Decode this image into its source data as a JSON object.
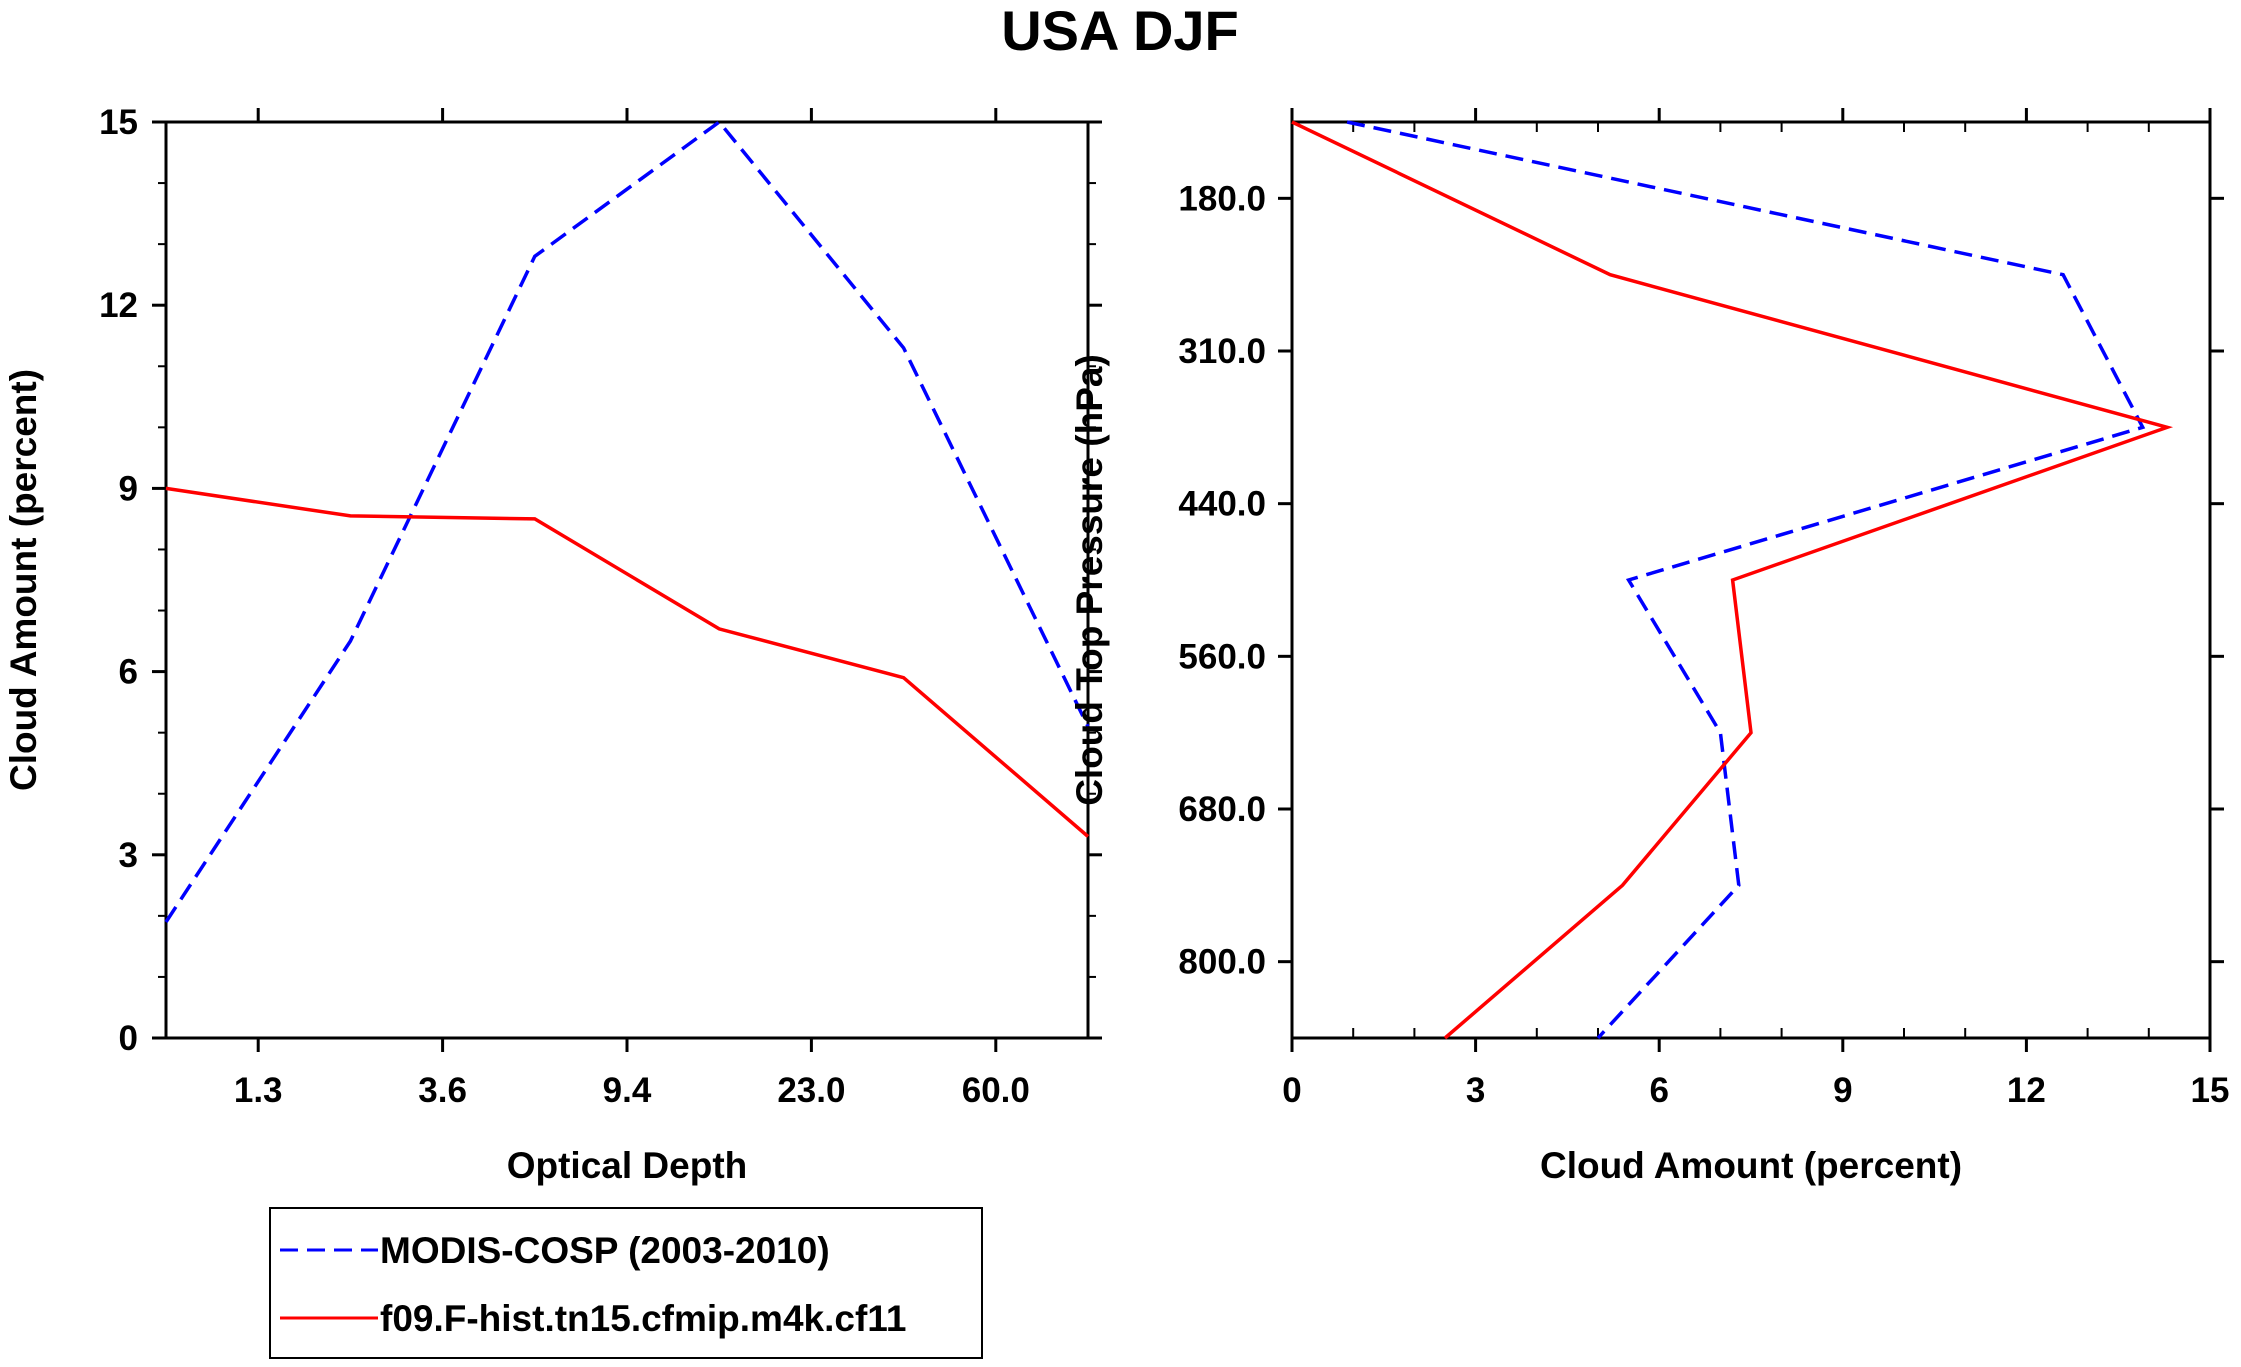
{
  "title": "USA DJF",
  "colors": {
    "modis": "#0000ff",
    "model": "#ff0000",
    "axis": "#000000"
  },
  "legend": {
    "entries": [
      {
        "label": "MODIS-COSP (2003-2010)",
        "color": "#0000ff",
        "style": "dashed"
      },
      {
        "label": "f09.F-hist.tn15.cfmip.m4k.cf11",
        "color": "#ff0000",
        "style": "solid"
      }
    ]
  },
  "chart_data": [
    {
      "type": "line",
      "xlabel": "Optical Depth",
      "ylabel": "Cloud Amount (percent)",
      "x_tick_labels": [
        "1.3",
        "3.6",
        "9.4",
        "23.0",
        "60.0"
      ],
      "y_tick_labels": [
        "0",
        "3",
        "6",
        "9",
        "12",
        "15"
      ],
      "ylim": [
        0,
        15
      ],
      "x_bin_index_range": [
        0,
        5
      ],
      "x_bin_index": [
        0,
        1,
        2,
        3,
        4,
        5
      ],
      "series": [
        {
          "name": "MODIS-COSP (2003-2010)",
          "values": [
            1.9,
            6.5,
            12.8,
            15.0,
            11.3,
            5.1
          ]
        },
        {
          "name": "f09.F-hist.tn15.cfmip.m4k.cf11",
          "values": [
            9.0,
            8.55,
            8.5,
            6.7,
            5.9,
            3.3
          ]
        }
      ]
    },
    {
      "type": "line",
      "xlabel": "Cloud Amount (percent)",
      "ylabel": "Cloud Top Pressure (hPa)",
      "x_tick_labels": [
        "0",
        "3",
        "6",
        "9",
        "12",
        "15"
      ],
      "y_tick_labels": [
        "180.0",
        "310.0",
        "440.0",
        "560.0",
        "680.0",
        "800.0"
      ],
      "xlim": [
        0,
        15
      ],
      "y_bin_index_range": [
        0,
        6
      ],
      "y_bin_index": [
        0,
        1,
        2,
        3,
        4,
        5,
        6
      ],
      "series": [
        {
          "name": "MODIS-COSP (2003-2010)",
          "values": [
            0.9,
            12.6,
            13.9,
            5.5,
            7.0,
            7.3,
            5.0
          ]
        },
        {
          "name": "f09.F-hist.tn15.cfmip.m4k.cf11",
          "values": [
            0.0,
            5.2,
            14.3,
            7.2,
            7.5,
            5.4,
            2.5
          ]
        }
      ]
    }
  ]
}
